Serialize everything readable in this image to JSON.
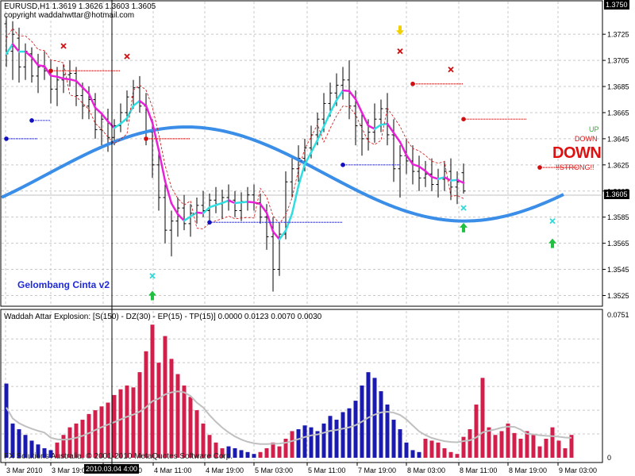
{
  "window": {
    "symbol_header": "EURUSD,H1  1.3619 1.3626 1.3603 1.3605",
    "copyright": "copyright waddahwttar@hotmail.com",
    "brand_label": "Gelombang Cinta v2",
    "signal_labels": {
      "up": "UP",
      "down": "DOWN",
      "down_big": "DOWN",
      "strong": "!!STRONG!!"
    },
    "footer": "FX Solutions Australia, © 2001-2010 MetaQuotes Software Corp."
  },
  "price_panel": {
    "price_ticks": [
      "1.3750",
      "1.3725",
      "1.3705",
      "1.3685",
      "1.3665",
      "1.3645",
      "1.3625",
      "1.3605",
      "1.3585",
      "1.3565",
      "1.3545",
      "1.3525"
    ],
    "current_price": "1.3605",
    "top_price_badge": "1.3750"
  },
  "indicator_panel": {
    "title": "Waddah Attar Explosion: [S(150) - DZ(30) - EP(15) - TP(15)] 0.0000 0.0123 0.0070 0.0030",
    "max_label": "0.0751",
    "zero_label": "0"
  },
  "time_axis": {
    "ticks": [
      "3 Mar 2010",
      "3 Mar 19:00",
      "4 Mar 03:00",
      "4 Mar 11:00",
      "4 Mar 19:00",
      "5 Mar 03:00",
      "5 Mar 11:00",
      "7 Mar 19:00",
      "8 Mar 03:00",
      "8 Mar 11:00",
      "8 Mar 19:00",
      "9 Mar 03:00"
    ],
    "cursor_label": "2010.03.04 4:00"
  },
  "colors": {
    "bull": "#1a1ab0",
    "bear": "#d11e4b",
    "ma_up": "#30dde0",
    "ma_down": "#e820d8",
    "wave": "#3a8ee8",
    "stop_red": "#d01010",
    "stop_blue": "#1010c0",
    "deadzone": "#c0c0c0"
  },
  "chart_data": {
    "type": "candlestick",
    "price_ylim": [
      1.3518,
      1.375
    ],
    "ohlc": [
      [
        1.3733,
        1.3738,
        1.37,
        1.371
      ],
      [
        1.3712,
        1.3735,
        1.369,
        1.3725
      ],
      [
        1.3722,
        1.373,
        1.3688,
        1.37
      ],
      [
        1.37,
        1.3718,
        1.369,
        1.3712
      ],
      [
        1.371,
        1.3715,
        1.3688,
        1.3693
      ],
      [
        1.3693,
        1.371,
        1.368,
        1.37
      ],
      [
        1.37,
        1.3712,
        1.369,
        1.3697
      ],
      [
        1.3697,
        1.3705,
        1.3672,
        1.3683
      ],
      [
        1.3683,
        1.37,
        1.367,
        1.369
      ],
      [
        1.369,
        1.3702,
        1.368,
        1.3694
      ],
      [
        1.3694,
        1.3705,
        1.3685,
        1.3695
      ],
      [
        1.3695,
        1.37,
        1.367,
        1.3678
      ],
      [
        1.3678,
        1.3688,
        1.366,
        1.367
      ],
      [
        1.367,
        1.3685,
        1.366,
        1.3675
      ],
      [
        1.3675,
        1.368,
        1.3645,
        1.3652
      ],
      [
        1.3652,
        1.3665,
        1.364,
        1.366
      ],
      [
        1.366,
        1.3668,
        1.3635,
        1.3646
      ],
      [
        1.3646,
        1.366,
        1.364,
        1.3655
      ],
      [
        1.3655,
        1.3672,
        1.365,
        1.3665
      ],
      [
        1.3665,
        1.3682,
        1.3658,
        1.3677
      ],
      [
        1.3677,
        1.369,
        1.3668,
        1.3684
      ],
      [
        1.3684,
        1.3693,
        1.3665,
        1.367
      ],
      [
        1.367,
        1.368,
        1.364,
        1.365
      ],
      [
        1.365,
        1.366,
        1.3615,
        1.3625
      ],
      [
        1.3625,
        1.3635,
        1.359,
        1.36
      ],
      [
        1.36,
        1.361,
        1.3565,
        1.3575
      ],
      [
        1.3575,
        1.359,
        1.3555,
        1.3582
      ],
      [
        1.3582,
        1.36,
        1.357,
        1.3592
      ],
      [
        1.3592,
        1.3602,
        1.3575,
        1.358
      ],
      [
        1.358,
        1.3595,
        1.357,
        1.3588
      ],
      [
        1.3588,
        1.36,
        1.358,
        1.3594
      ],
      [
        1.3594,
        1.3605,
        1.3585,
        1.359
      ],
      [
        1.359,
        1.3603,
        1.358,
        1.3598
      ],
      [
        1.3598,
        1.3608,
        1.3588,
        1.3595
      ],
      [
        1.3595,
        1.3606,
        1.3584,
        1.36
      ],
      [
        1.36,
        1.361,
        1.359,
        1.3598
      ],
      [
        1.3598,
        1.3605,
        1.3585,
        1.359
      ],
      [
        1.359,
        1.3604,
        1.3582,
        1.3597
      ],
      [
        1.3597,
        1.3608,
        1.359,
        1.3602
      ],
      [
        1.3602,
        1.361,
        1.359,
        1.3596
      ],
      [
        1.3596,
        1.3603,
        1.358,
        1.3585
      ],
      [
        1.3585,
        1.3595,
        1.356,
        1.357
      ],
      [
        1.357,
        1.3585,
        1.3528,
        1.3545
      ],
      [
        1.3545,
        1.358,
        1.354,
        1.3572
      ],
      [
        1.3572,
        1.362,
        1.3568,
        1.3612
      ],
      [
        1.3612,
        1.363,
        1.36,
        1.3622
      ],
      [
        1.3622,
        1.364,
        1.3612,
        1.363
      ],
      [
        1.363,
        1.3645,
        1.362,
        1.3638
      ],
      [
        1.3638,
        1.3655,
        1.363,
        1.3648
      ],
      [
        1.3648,
        1.3665,
        1.364,
        1.366
      ],
      [
        1.366,
        1.368,
        1.365,
        1.3672
      ],
      [
        1.3672,
        1.3688,
        1.3662,
        1.368
      ],
      [
        1.368,
        1.3695,
        1.367,
        1.3686
      ],
      [
        1.3686,
        1.37,
        1.3675,
        1.369
      ],
      [
        1.369,
        1.3705,
        1.366,
        1.367
      ],
      [
        1.367,
        1.3682,
        1.364,
        1.3655
      ],
      [
        1.3655,
        1.3665,
        1.3632,
        1.3645
      ],
      [
        1.3645,
        1.366,
        1.3636,
        1.365
      ],
      [
        1.365,
        1.3672,
        1.3642,
        1.366
      ],
      [
        1.366,
        1.3675,
        1.365,
        1.3668
      ],
      [
        1.3668,
        1.368,
        1.364,
        1.3648
      ],
      [
        1.3648,
        1.366,
        1.3612,
        1.3622
      ],
      [
        1.3622,
        1.364,
        1.36,
        1.3632
      ],
      [
        1.3632,
        1.3645,
        1.3618,
        1.3628
      ],
      [
        1.3628,
        1.364,
        1.361,
        1.362
      ],
      [
        1.362,
        1.3632,
        1.3605,
        1.3615
      ],
      [
        1.3615,
        1.3628,
        1.3608,
        1.3618
      ],
      [
        1.3618,
        1.363,
        1.3605,
        1.361
      ],
      [
        1.361,
        1.3622,
        1.36,
        1.3614
      ],
      [
        1.3614,
        1.3628,
        1.3605,
        1.362
      ],
      [
        1.362,
        1.363,
        1.3598,
        1.3608
      ],
      [
        1.3608,
        1.362,
        1.3595,
        1.3612
      ],
      [
        1.3619,
        1.3626,
        1.3603,
        1.3605
      ]
    ],
    "wave_centre": 1.3618,
    "wave_amplitude": 0.0036,
    "signals": {
      "sell_marks": [
        [
          9,
          1.3716
        ],
        [
          19,
          1.3708
        ],
        [
          62,
          1.3712
        ],
        [
          70,
          1.3698
        ]
      ],
      "sell_arrow": [
        62,
        1.3728
      ],
      "buy_marks": [
        [
          23,
          1.354
        ],
        [
          72,
          1.3592
        ],
        [
          86,
          1.3582
        ]
      ],
      "buy_arrows": [
        [
          23,
          1.3525
        ],
        [
          72,
          1.3577
        ],
        [
          86,
          1.3565
        ]
      ]
    },
    "histogram": [
      {
        "v": 0.039,
        "bull": 1
      },
      {
        "v": 0.018,
        "bull": 1
      },
      {
        "v": 0.015,
        "bull": 1
      },
      {
        "v": 0.012,
        "bull": 1
      },
      {
        "v": 0.009,
        "bull": 1
      },
      {
        "v": 0.007,
        "bull": 1
      },
      {
        "v": 0.005,
        "bull": 1
      },
      {
        "v": 0.004,
        "bull": 1
      },
      {
        "v": 0.008,
        "bull": 0
      },
      {
        "v": 0.012,
        "bull": 0
      },
      {
        "v": 0.016,
        "bull": 0
      },
      {
        "v": 0.018,
        "bull": 0
      },
      {
        "v": 0.02,
        "bull": 0
      },
      {
        "v": 0.023,
        "bull": 0
      },
      {
        "v": 0.025,
        "bull": 0
      },
      {
        "v": 0.027,
        "bull": 0
      },
      {
        "v": 0.029,
        "bull": 0
      },
      {
        "v": 0.033,
        "bull": 0
      },
      {
        "v": 0.036,
        "bull": 0
      },
      {
        "v": 0.038,
        "bull": 0
      },
      {
        "v": 0.037,
        "bull": 0
      },
      {
        "v": 0.045,
        "bull": 0
      },
      {
        "v": 0.056,
        "bull": 0
      },
      {
        "v": 0.07,
        "bull": 0
      },
      {
        "v": 0.05,
        "bull": 0
      },
      {
        "v": 0.064,
        "bull": 0
      },
      {
        "v": 0.052,
        "bull": 0
      },
      {
        "v": 0.044,
        "bull": 0
      },
      {
        "v": 0.038,
        "bull": 0
      },
      {
        "v": 0.032,
        "bull": 0
      },
      {
        "v": 0.025,
        "bull": 0
      },
      {
        "v": 0.018,
        "bull": 0
      },
      {
        "v": 0.012,
        "bull": 0
      },
      {
        "v": 0.008,
        "bull": 0
      },
      {
        "v": 0.005,
        "bull": 0
      },
      {
        "v": 0.006,
        "bull": 1
      },
      {
        "v": 0.005,
        "bull": 1
      },
      {
        "v": 0.004,
        "bull": 1
      },
      {
        "v": 0.003,
        "bull": 1
      },
      {
        "v": 0.002,
        "bull": 1
      },
      {
        "v": 0.003,
        "bull": 0
      },
      {
        "v": 0.005,
        "bull": 0
      },
      {
        "v": 0.008,
        "bull": 0
      },
      {
        "v": 0.006,
        "bull": 0
      },
      {
        "v": 0.01,
        "bull": 0
      },
      {
        "v": 0.014,
        "bull": 0
      },
      {
        "v": 0.015,
        "bull": 1
      },
      {
        "v": 0.017,
        "bull": 1
      },
      {
        "v": 0.016,
        "bull": 1
      },
      {
        "v": 0.014,
        "bull": 1
      },
      {
        "v": 0.018,
        "bull": 1
      },
      {
        "v": 0.022,
        "bull": 1
      },
      {
        "v": 0.02,
        "bull": 1
      },
      {
        "v": 0.024,
        "bull": 1
      },
      {
        "v": 0.026,
        "bull": 1
      },
      {
        "v": 0.03,
        "bull": 1
      },
      {
        "v": 0.038,
        "bull": 1
      },
      {
        "v": 0.045,
        "bull": 1
      },
      {
        "v": 0.042,
        "bull": 1
      },
      {
        "v": 0.035,
        "bull": 1
      },
      {
        "v": 0.028,
        "bull": 1
      },
      {
        "v": 0.02,
        "bull": 1
      },
      {
        "v": 0.015,
        "bull": 1
      },
      {
        "v": 0.008,
        "bull": 1
      },
      {
        "v": 0.004,
        "bull": 1
      },
      {
        "v": 0.003,
        "bull": 1
      },
      {
        "v": 0.01,
        "bull": 0
      },
      {
        "v": 0.009,
        "bull": 0
      },
      {
        "v": 0.008,
        "bull": 0
      },
      {
        "v": 0.005,
        "bull": 0
      },
      {
        "v": 0.003,
        "bull": 0
      },
      {
        "v": 0.002,
        "bull": 0
      },
      {
        "v": 0.011,
        "bull": 0
      },
      {
        "v": 0.015,
        "bull": 0
      },
      {
        "v": 0.028,
        "bull": 0
      },
      {
        "v": 0.042,
        "bull": 0
      },
      {
        "v": 0.016,
        "bull": 0
      },
      {
        "v": 0.012,
        "bull": 0
      },
      {
        "v": 0.014,
        "bull": 0
      },
      {
        "v": 0.018,
        "bull": 0
      },
      {
        "v": 0.013,
        "bull": 0
      },
      {
        "v": 0.01,
        "bull": 0
      },
      {
        "v": 0.014,
        "bull": 0
      },
      {
        "v": 0.012,
        "bull": 0
      },
      {
        "v": 0.006,
        "bull": 0
      },
      {
        "v": 0.01,
        "bull": 0
      },
      {
        "v": 0.016,
        "bull": 0
      },
      {
        "v": 0.009,
        "bull": 0
      },
      {
        "v": 0.005,
        "bull": 0
      },
      {
        "v": 0.012,
        "bull": 0
      }
    ],
    "hist_ylim": [
      0,
      0.0751
    ]
  }
}
